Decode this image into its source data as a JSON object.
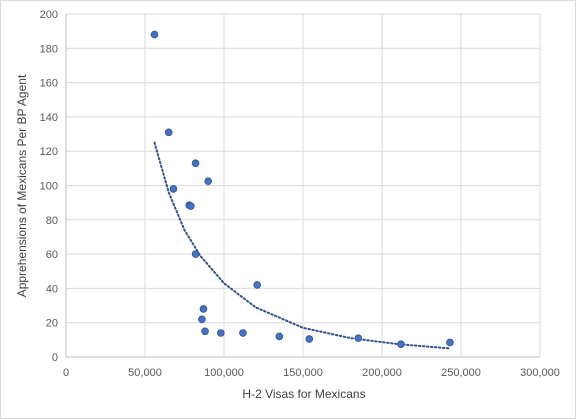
{
  "chart_data": {
    "type": "scatter",
    "title": "",
    "xlabel": "H-2 Visas for Mexicans",
    "ylabel": "Apprehensions of Mexicans Per BP Agent",
    "xlim": [
      0,
      300000
    ],
    "ylim": [
      0,
      200
    ],
    "xticks": [
      0,
      50000,
      100000,
      150000,
      200000,
      250000,
      300000
    ],
    "xtick_labels": [
      "0",
      "50,000",
      "100,000",
      "150,000",
      "200,000",
      "250,000",
      "300,000"
    ],
    "yticks": [
      0,
      20,
      40,
      60,
      80,
      100,
      120,
      140,
      160,
      180,
      200
    ],
    "ytick_labels": [
      "0",
      "20",
      "40",
      "60",
      "80",
      "100",
      "120",
      "140",
      "160",
      "180",
      "200"
    ],
    "grid": true,
    "legend": false,
    "marker_color": "#4472c4",
    "trendline": {
      "type": "power",
      "style": "dotted",
      "color": "#2f528f",
      "x_range": [
        56000,
        243000
      ],
      "points": [
        {
          "x": 56000,
          "y": 125
        },
        {
          "x": 65000,
          "y": 96
        },
        {
          "x": 75000,
          "y": 74
        },
        {
          "x": 85000,
          "y": 59
        },
        {
          "x": 100000,
          "y": 43
        },
        {
          "x": 120000,
          "y": 29
        },
        {
          "x": 150000,
          "y": 17
        },
        {
          "x": 180000,
          "y": 11
        },
        {
          "x": 210000,
          "y": 7.5
        },
        {
          "x": 243000,
          "y": 5
        }
      ]
    },
    "points": [
      {
        "x": 56000,
        "y": 188
      },
      {
        "x": 65000,
        "y": 131
      },
      {
        "x": 68000,
        "y": 98
      },
      {
        "x": 78000,
        "y": 88.5
      },
      {
        "x": 79000,
        "y": 88
      },
      {
        "x": 82000,
        "y": 113
      },
      {
        "x": 90000,
        "y": 102.5
      },
      {
        "x": 82000,
        "y": 60
      },
      {
        "x": 87000,
        "y": 28
      },
      {
        "x": 86000,
        "y": 22
      },
      {
        "x": 88000,
        "y": 15
      },
      {
        "x": 98000,
        "y": 14
      },
      {
        "x": 112000,
        "y": 14
      },
      {
        "x": 121000,
        "y": 42
      },
      {
        "x": 135000,
        "y": 12
      },
      {
        "x": 154000,
        "y": 10.5
      },
      {
        "x": 185000,
        "y": 11
      },
      {
        "x": 212000,
        "y": 7.5
      },
      {
        "x": 243000,
        "y": 8.5
      }
    ]
  }
}
